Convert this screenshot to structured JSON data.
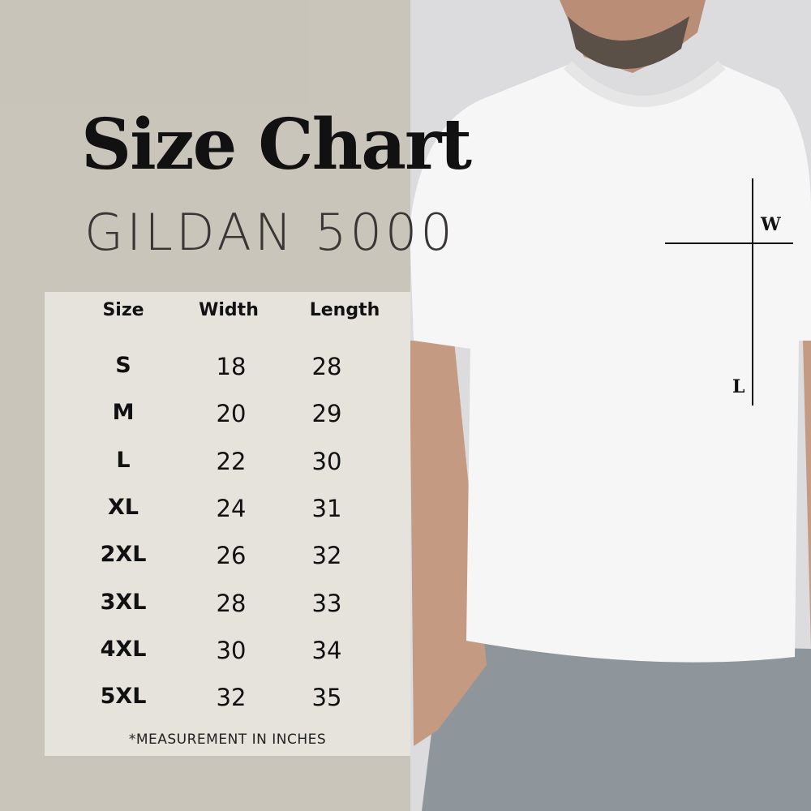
{
  "title": "Size Chart",
  "subtitle": "GILDAN 5000",
  "table": {
    "headers": [
      "Size",
      "Width",
      "Length"
    ],
    "rows": [
      [
        "S",
        "18",
        "28"
      ],
      [
        "M",
        "20",
        "29"
      ],
      [
        "L",
        "22",
        "30"
      ],
      [
        "XL",
        "24",
        "31"
      ],
      [
        "2XL",
        "26",
        "32"
      ],
      [
        "3XL",
        "28",
        "33"
      ],
      [
        "4XL",
        "30",
        "34"
      ],
      [
        "5XL",
        "32",
        "35"
      ]
    ],
    "note": "*MEASUREMENT IN INCHES"
  },
  "measure_labels": {
    "width": "W",
    "length": "L"
  },
  "colors": {
    "panel": "#c4bfb2",
    "text": "#111111",
    "shirt": "#f7f7f7",
    "jeans": "#8e959b"
  }
}
